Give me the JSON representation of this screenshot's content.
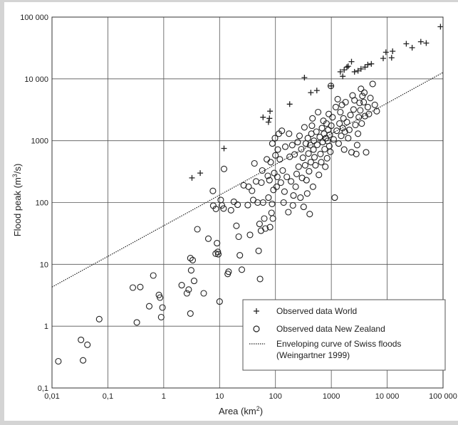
{
  "chart_data": {
    "type": "scatter",
    "xscale": "log",
    "yscale": "log",
    "xlim": [
      0.01,
      100000
    ],
    "ylim": [
      0.1,
      100000
    ],
    "grid": true,
    "legend_position": "bottom-right",
    "xlabel_prefix": "Area (km",
    "xlabel_sup": "2",
    "xlabel_suffix": ")",
    "ylabel_prefix": "Flood peak (m",
    "ylabel_sup": "3",
    "ylabel_suffix": "/s)",
    "x_ticks": [
      {
        "value": 0.01,
        "label": "0,01"
      },
      {
        "value": 0.1,
        "label": "0,1"
      },
      {
        "value": 1,
        "label": "1"
      },
      {
        "value": 10,
        "label": "10"
      },
      {
        "value": 100,
        "label": "100"
      },
      {
        "value": 1000,
        "label": "1000"
      },
      {
        "value": 10000,
        "label": "10 000"
      },
      {
        "value": 100000,
        "label": "100 000"
      }
    ],
    "y_ticks": [
      {
        "value": 0.1,
        "label": "0,1"
      },
      {
        "value": 1,
        "label": "1"
      },
      {
        "value": 10,
        "label": "10"
      },
      {
        "value": 100,
        "label": "100"
      },
      {
        "value": 1000,
        "label": "1000"
      },
      {
        "value": 10000,
        "label": "10 000"
      },
      {
        "value": 100000,
        "label": "100 000"
      }
    ],
    "legend": [
      {
        "marker": "plus",
        "label": "Observed data World"
      },
      {
        "marker": "circle",
        "label": "Observed data New Zealand"
      },
      {
        "marker": "dotted",
        "label": "Enveloping curve of Swiss floods",
        "label2": "(Weingartner 1999)"
      }
    ],
    "series": [
      {
        "marker": "plus",
        "points": [
          [
            3.2,
            250
          ],
          [
            4.5,
            300
          ],
          [
            12,
            750
          ],
          [
            60,
            2400
          ],
          [
            75,
            2000
          ],
          [
            78,
            2300
          ],
          [
            80,
            3000
          ],
          [
            180,
            3900
          ],
          [
            330,
            10500
          ],
          [
            430,
            6000
          ],
          [
            550,
            6500
          ],
          [
            1000,
            7700
          ],
          [
            1450,
            13000
          ],
          [
            1600,
            11000
          ],
          [
            1700,
            14000
          ],
          [
            1900,
            15500
          ],
          [
            2000,
            16000
          ],
          [
            2300,
            19000
          ],
          [
            2600,
            13000
          ],
          [
            3000,
            13500
          ],
          [
            3400,
            14500
          ],
          [
            4000,
            15500
          ],
          [
            4500,
            17000
          ],
          [
            5200,
            17500
          ],
          [
            8500,
            21500
          ],
          [
            9500,
            27000
          ],
          [
            12000,
            22000
          ],
          [
            12500,
            28000
          ],
          [
            22000,
            37000
          ],
          [
            28000,
            32000
          ],
          [
            40000,
            40000
          ],
          [
            50000,
            38000
          ],
          [
            90000,
            70000
          ]
        ]
      },
      {
        "marker": "circle",
        "points": [
          [
            0.013,
            0.27
          ],
          [
            0.033,
            0.6
          ],
          [
            0.036,
            0.28
          ],
          [
            0.043,
            0.5
          ],
          [
            0.07,
            1.3
          ],
          [
            0.28,
            4.2
          ],
          [
            0.33,
            1.15
          ],
          [
            0.38,
            4.3
          ],
          [
            0.55,
            2.1
          ],
          [
            0.65,
            6.6
          ],
          [
            0.82,
            3.2
          ],
          [
            0.86,
            2.9
          ],
          [
            0.9,
            1.4
          ],
          [
            0.95,
            2.0
          ],
          [
            2.1,
            4.6
          ],
          [
            2.6,
            3.4
          ],
          [
            2.8,
            3.9
          ],
          [
            3.0,
            1.6
          ],
          [
            3.0,
            12.6
          ],
          [
            3.1,
            8.0
          ],
          [
            3.3,
            11.7
          ],
          [
            3.5,
            5.4
          ],
          [
            4.0,
            37
          ],
          [
            5.2,
            3.4
          ],
          [
            6.3,
            26
          ],
          [
            7.6,
            154
          ],
          [
            7.7,
            89
          ],
          [
            8.5,
            14.9
          ],
          [
            8.6,
            79
          ],
          [
            9.0,
            22
          ],
          [
            9.3,
            15.9
          ],
          [
            9.5,
            14.6
          ],
          [
            10.0,
            2.5
          ],
          [
            10.5,
            110
          ],
          [
            11.0,
            90
          ],
          [
            11.8,
            80
          ],
          [
            12.0,
            350
          ],
          [
            14.0,
            7.0
          ],
          [
            14.5,
            7.6
          ],
          [
            16.0,
            75
          ],
          [
            18.0,
            103
          ],
          [
            20.0,
            42
          ],
          [
            21.0,
            92
          ],
          [
            22.0,
            28
          ],
          [
            23.0,
            14
          ],
          [
            25.0,
            8.2
          ],
          [
            27.0,
            190
          ],
          [
            32.0,
            91
          ],
          [
            33.0,
            180
          ],
          [
            35.0,
            30
          ],
          [
            38.0,
            155
          ],
          [
            40.0,
            110
          ],
          [
            42.0,
            430
          ],
          [
            45.0,
            220
          ],
          [
            48.0,
            100
          ],
          [
            50.0,
            16.5
          ],
          [
            52.0,
            45
          ],
          [
            53.0,
            5.8
          ],
          [
            55.0,
            35
          ],
          [
            56.0,
            210
          ],
          [
            58.0,
            330
          ],
          [
            60.0,
            100
          ],
          [
            63.0,
            55
          ],
          [
            66.0,
            38
          ],
          [
            70.0,
            500
          ],
          [
            73.0,
            270
          ],
          [
            75.0,
            120
          ],
          [
            78.0,
            230
          ],
          [
            80.0,
            40
          ],
          [
            82.0,
            450
          ],
          [
            85.0,
            68
          ],
          [
            87.0,
            95
          ],
          [
            88.0,
            900
          ],
          [
            90.0,
            55
          ],
          [
            92.0,
            160
          ],
          [
            95.0,
            300
          ],
          [
            98.0,
            1100
          ],
          [
            100.0,
            580
          ],
          [
            105.0,
            180
          ],
          [
            108.0,
            260
          ],
          [
            110.0,
            720
          ],
          [
            115.0,
            1300
          ],
          [
            120.0,
            500
          ],
          [
            125.0,
            210
          ],
          [
            130.0,
            1450
          ],
          [
            135.0,
            330
          ],
          [
            140.0,
            100
          ],
          [
            145.0,
            150
          ],
          [
            150.0,
            800
          ],
          [
            160.0,
            260
          ],
          [
            170.0,
            70
          ],
          [
            175.0,
            1300
          ],
          [
            180.0,
            550
          ],
          [
            190.0,
            220
          ],
          [
            200.0,
            850
          ],
          [
            205.0,
            90
          ],
          [
            210.0,
            130
          ],
          [
            220.0,
            600
          ],
          [
            230.0,
            180
          ],
          [
            240.0,
            290
          ],
          [
            250.0,
            950
          ],
          [
            260.0,
            380
          ],
          [
            270.0,
            1200
          ],
          [
            280.0,
            120
          ],
          [
            290.0,
            730
          ],
          [
            300.0,
            250
          ],
          [
            310.0,
            530
          ],
          [
            320.0,
            85
          ],
          [
            330.0,
            1650
          ],
          [
            340.0,
            400
          ],
          [
            350.0,
            900
          ],
          [
            360.0,
            230
          ],
          [
            370.0,
            140
          ],
          [
            380.0,
            1100
          ],
          [
            390.0,
            620
          ],
          [
            400.0,
            320
          ],
          [
            410.0,
            65
          ],
          [
            420.0,
            850
          ],
          [
            430.0,
            450
          ],
          [
            440.0,
            1300
          ],
          [
            450.0,
            1750
          ],
          [
            460.0,
            2300
          ],
          [
            470.0,
            180
          ],
          [
            480.0,
            720
          ],
          [
            490.0,
            1000
          ],
          [
            500.0,
            540
          ],
          [
            520.0,
            400
          ],
          [
            540.0,
            1400
          ],
          [
            560.0,
            860
          ],
          [
            580.0,
            2900
          ],
          [
            600.0,
            280
          ],
          [
            620.0,
            1150
          ],
          [
            640.0,
            610
          ],
          [
            660.0,
            450
          ],
          [
            680.0,
            1600
          ],
          [
            700.0,
            950
          ],
          [
            720.0,
            2100
          ],
          [
            740.0,
            1300
          ],
          [
            760.0,
            730
          ],
          [
            780.0,
            380
          ],
          [
            800.0,
            1100
          ],
          [
            820.0,
            1900
          ],
          [
            840.0,
            520
          ],
          [
            860.0,
            990
          ],
          [
            880.0,
            1500
          ],
          [
            900.0,
            2700
          ],
          [
            920.0,
            820
          ],
          [
            940.0,
            1250
          ],
          [
            960.0,
            660
          ],
          [
            980.0,
            7700
          ],
          [
            1000.0,
            1750
          ],
          [
            1050.0,
            2400
          ],
          [
            1100.0,
            1050
          ],
          [
            1150.0,
            120
          ],
          [
            1200.0,
            3500
          ],
          [
            1250.0,
            1450
          ],
          [
            1300.0,
            4700
          ],
          [
            1350.0,
            900
          ],
          [
            1400.0,
            1900
          ],
          [
            1450.0,
            2900
          ],
          [
            1500.0,
            1200
          ],
          [
            1550.0,
            3800
          ],
          [
            1600.0,
            1600
          ],
          [
            1650.0,
            2300
          ],
          [
            1700.0,
            720
          ],
          [
            1750.0,
            1400
          ],
          [
            1800.0,
            4200
          ],
          [
            1900.0,
            2000
          ],
          [
            2000.0,
            1100
          ],
          [
            2100.0,
            1500
          ],
          [
            2200.0,
            2600
          ],
          [
            2300.0,
            650
          ],
          [
            2400.0,
            5400
          ],
          [
            2500.0,
            3200
          ],
          [
            2600.0,
            4500
          ],
          [
            2700.0,
            1800
          ],
          [
            2800.0,
            610
          ],
          [
            2900.0,
            850
          ],
          [
            3000.0,
            1300
          ],
          [
            3100.0,
            2400
          ],
          [
            3200.0,
            4100
          ],
          [
            3300.0,
            3100
          ],
          [
            3400.0,
            6900
          ],
          [
            3500.0,
            1900
          ],
          [
            3600.0,
            5300
          ],
          [
            3800.0,
            4200
          ],
          [
            3900.0,
            6000
          ],
          [
            4000.0,
            2500
          ],
          [
            4200.0,
            650
          ],
          [
            4500.0,
            3500
          ],
          [
            4700.0,
            2700
          ],
          [
            5000.0,
            4900
          ],
          [
            5500.0,
            8300
          ],
          [
            6000.0,
            3800
          ],
          [
            6500.0,
            3000
          ]
        ]
      },
      {
        "marker": "dotted",
        "line": [
          [
            0.01,
            4.3
          ],
          [
            100000,
            12700
          ]
        ]
      }
    ]
  }
}
